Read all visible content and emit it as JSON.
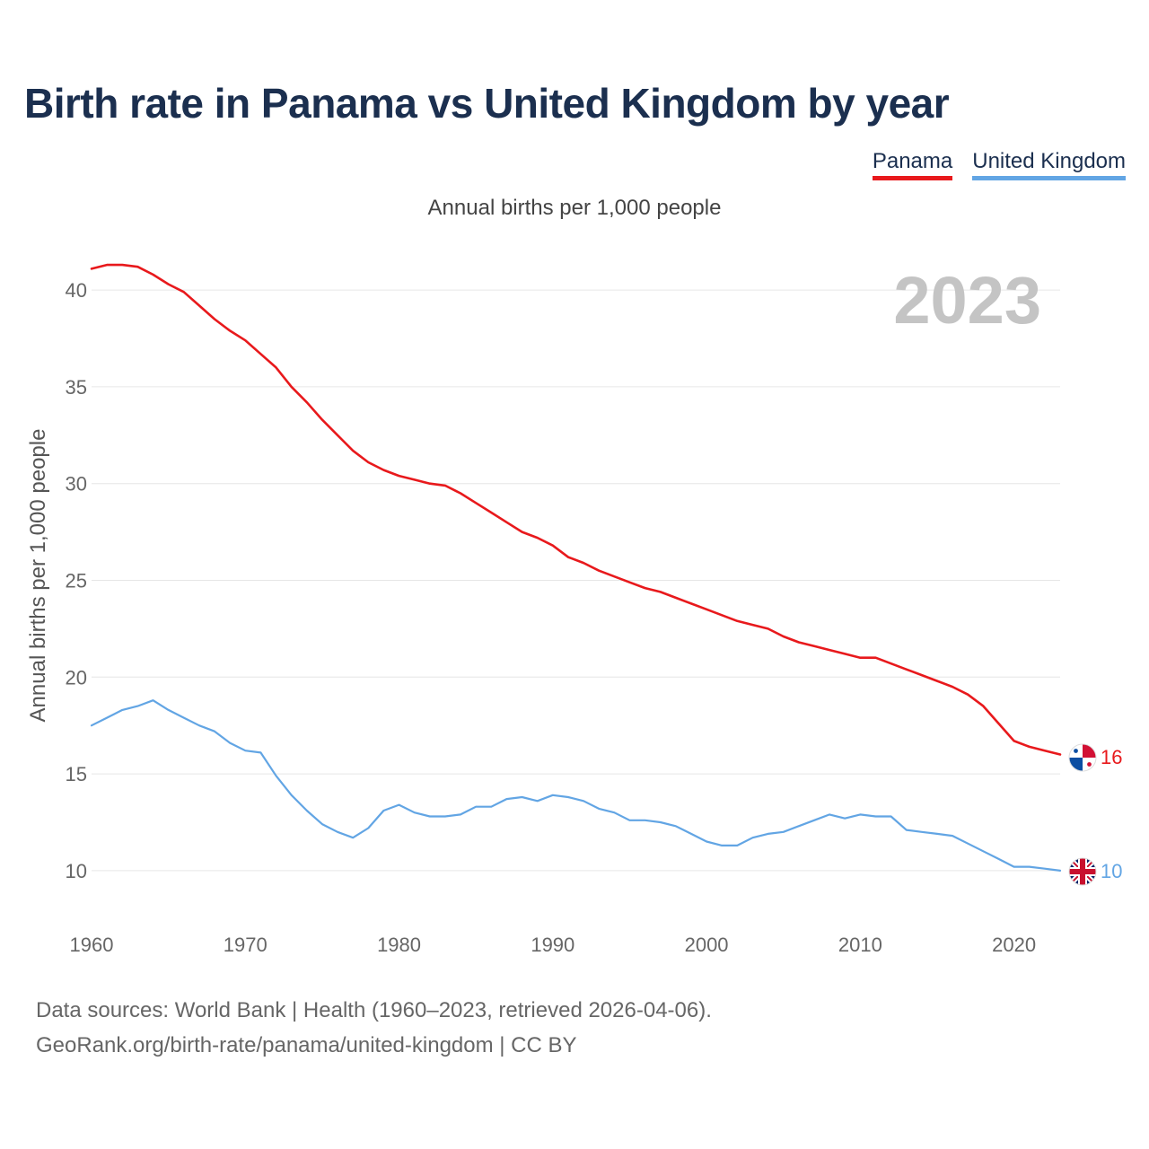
{
  "header": {
    "title": "Birth rate in Panama vs United Kingdom by year"
  },
  "legend": [
    {
      "name": "Panama",
      "color": "#e8191c"
    },
    {
      "name": "United Kingdom",
      "color": "#62a5e4"
    }
  ],
  "footer": {
    "sources": "Data sources: World Bank | Health (1960–2023, retrieved 2026-04-06).",
    "link": "GeoRank.org/birth-rate/panama/united-kingdom | CC BY"
  },
  "chart_data": {
    "type": "line",
    "title": "Birth rate in Panama vs United Kingdom by year",
    "subtitle": "Annual births per 1,000 people",
    "ylabel": "Annual births per 1,000 people",
    "xlabel": "",
    "year_label": "2023",
    "xlim": [
      1960,
      2023
    ],
    "ylim": [
      8,
      42
    ],
    "xticks": [
      1960,
      1970,
      1980,
      1990,
      2000,
      2010,
      2020
    ],
    "yticks": [
      10,
      15,
      20,
      25,
      30,
      35,
      40
    ],
    "grid": true,
    "legend_position": "top-right",
    "x": [
      1960,
      1961,
      1962,
      1963,
      1964,
      1965,
      1966,
      1967,
      1968,
      1969,
      1970,
      1971,
      1972,
      1973,
      1974,
      1975,
      1976,
      1977,
      1978,
      1979,
      1980,
      1981,
      1982,
      1983,
      1984,
      1985,
      1986,
      1987,
      1988,
      1989,
      1990,
      1991,
      1992,
      1993,
      1994,
      1995,
      1996,
      1997,
      1998,
      1999,
      2000,
      2001,
      2002,
      2003,
      2004,
      2005,
      2006,
      2007,
      2008,
      2009,
      2010,
      2011,
      2012,
      2013,
      2014,
      2015,
      2016,
      2017,
      2018,
      2019,
      2020,
      2021,
      2022,
      2023
    ],
    "series": [
      {
        "name": "Panama",
        "color": "#e8191c",
        "end_label": "16",
        "values": [
          41.1,
          41.3,
          41.3,
          41.2,
          40.8,
          40.3,
          39.9,
          39.2,
          38.5,
          37.9,
          37.4,
          36.7,
          36.0,
          35.0,
          34.2,
          33.3,
          32.5,
          31.7,
          31.1,
          30.7,
          30.4,
          30.2,
          30.0,
          29.9,
          29.5,
          29.0,
          28.5,
          28.0,
          27.5,
          27.2,
          26.8,
          26.2,
          25.9,
          25.5,
          25.2,
          24.9,
          24.6,
          24.4,
          24.1,
          23.8,
          23.5,
          23.2,
          22.9,
          22.7,
          22.5,
          22.1,
          21.8,
          21.6,
          21.4,
          21.2,
          21.0,
          21.0,
          20.7,
          20.4,
          20.1,
          19.8,
          19.5,
          19.1,
          18.5,
          17.6,
          16.7,
          16.4,
          16.2,
          16.0
        ]
      },
      {
        "name": "United Kingdom",
        "color": "#62a5e4",
        "end_label": "10",
        "values": [
          17.5,
          17.9,
          18.3,
          18.5,
          18.8,
          18.3,
          17.9,
          17.5,
          17.2,
          16.6,
          16.2,
          16.1,
          14.9,
          13.9,
          13.1,
          12.4,
          12.0,
          11.7,
          12.2,
          13.1,
          13.4,
          13.0,
          12.8,
          12.8,
          12.9,
          13.3,
          13.3,
          13.7,
          13.8,
          13.6,
          13.9,
          13.8,
          13.6,
          13.2,
          13.0,
          12.6,
          12.6,
          12.5,
          12.3,
          11.9,
          11.5,
          11.3,
          11.3,
          11.7,
          11.9,
          12.0,
          12.3,
          12.6,
          12.9,
          12.7,
          12.9,
          12.8,
          12.8,
          12.1,
          12.0,
          11.9,
          11.8,
          11.4,
          11.0,
          10.6,
          10.2,
          10.2,
          10.1,
          10.0
        ]
      }
    ]
  }
}
